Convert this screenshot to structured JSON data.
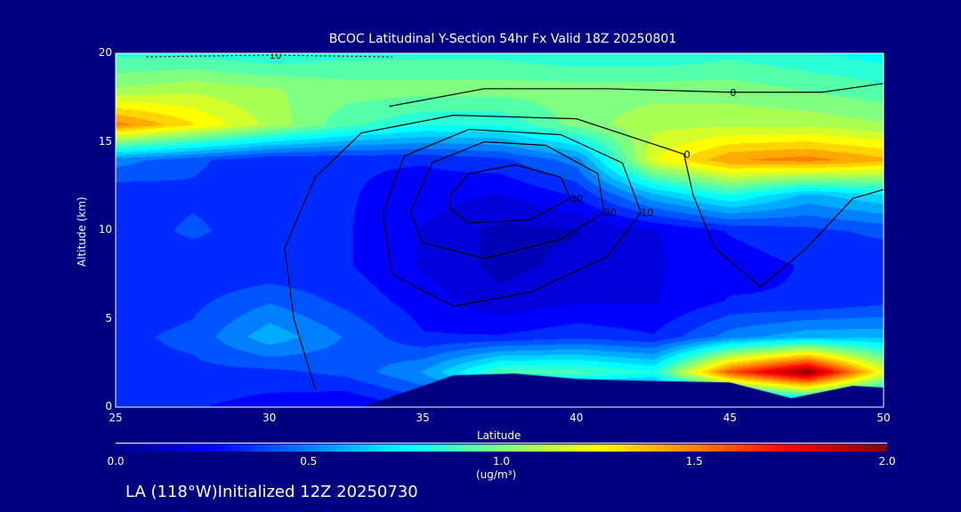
{
  "chart_data": {
    "type": "heatmap",
    "title": "BCOC Latitudinal Y-Section 54hr  Fx Valid 18Z 20250801",
    "xlabel": "Latitude",
    "ylabel": "Altitude (km)",
    "xlim": [
      25,
      50
    ],
    "ylim": [
      0,
      20
    ],
    "xticks": [
      "25",
      "30",
      "35",
      "40",
      "45",
      "50"
    ],
    "yticks": [
      "0",
      "5",
      "10",
      "15",
      "20"
    ],
    "grid_lat": [
      25,
      27.5,
      30,
      32.5,
      35,
      37.5,
      40,
      42.5,
      45,
      47.5,
      50
    ],
    "grid_alt": [
      0,
      2,
      4,
      6,
      8,
      10,
      12,
      14,
      16,
      18,
      20
    ],
    "values": [
      [
        0.3,
        0.3,
        0.25,
        0.2,
        0.3,
        0.1,
        0.1,
        0.1,
        0.1,
        0.3,
        0.3
      ],
      [
        0.35,
        0.35,
        0.35,
        0.4,
        0.55,
        0.9,
        0.9,
        0.8,
        1.6,
        2.0,
        1.2
      ],
      [
        0.35,
        0.4,
        0.6,
        0.45,
        0.3,
        0.3,
        0.35,
        0.3,
        0.5,
        0.6,
        0.6
      ],
      [
        0.3,
        0.35,
        0.45,
        0.35,
        0.25,
        0.15,
        0.2,
        0.2,
        0.3,
        0.3,
        0.35
      ],
      [
        0.3,
        0.3,
        0.3,
        0.3,
        0.2,
        0.1,
        0.15,
        0.2,
        0.25,
        0.3,
        0.3
      ],
      [
        0.3,
        0.4,
        0.3,
        0.3,
        0.2,
        0.1,
        0.12,
        0.2,
        0.3,
        0.35,
        0.4
      ],
      [
        0.3,
        0.35,
        0.3,
        0.3,
        0.25,
        0.2,
        0.3,
        0.6,
        0.8,
        0.6,
        0.7
      ],
      [
        0.5,
        0.4,
        0.3,
        0.3,
        0.3,
        0.35,
        0.5,
        1.2,
        1.45,
        1.5,
        1.4
      ],
      [
        1.5,
        1.3,
        1.1,
        0.9,
        0.8,
        0.8,
        1.0,
        1.1,
        1.1,
        1.1,
        1.05
      ],
      [
        1.05,
        1.1,
        1.05,
        1.0,
        1.0,
        1.0,
        1.0,
        1.0,
        1.0,
        0.95,
        0.9
      ],
      [
        0.85,
        0.85,
        0.8,
        0.85,
        0.85,
        0.85,
        0.8,
        0.8,
        0.85,
        0.8,
        0.75
      ]
    ],
    "terrain": [
      [
        25,
        0
      ],
      [
        33,
        0
      ],
      [
        36,
        1.8
      ],
      [
        38,
        1.9
      ],
      [
        40,
        1.6
      ],
      [
        42,
        1.5
      ],
      [
        45,
        1.4
      ],
      [
        47,
        0.5
      ],
      [
        49,
        1.2
      ],
      [
        50,
        1.1
      ],
      [
        50,
        0
      ]
    ],
    "contours": [
      {
        "label": "30",
        "points": [
          [
            35.9,
            12
          ],
          [
            36.5,
            13.2
          ],
          [
            38,
            13.7
          ],
          [
            39.5,
            13
          ],
          [
            39.8,
            11.8
          ],
          [
            38.5,
            10.6
          ],
          [
            36.5,
            10.4
          ],
          [
            35.9,
            11.2
          ],
          [
            35.9,
            12
          ]
        ]
      },
      {
        "label": "20",
        "points": [
          [
            34.6,
            11
          ],
          [
            35.3,
            13.8
          ],
          [
            37,
            15
          ],
          [
            39,
            14.8
          ],
          [
            40.7,
            13.2
          ],
          [
            40.9,
            11
          ],
          [
            39.5,
            9.5
          ],
          [
            37,
            8.4
          ],
          [
            35,
            9.3
          ],
          [
            34.6,
            11
          ]
        ]
      },
      {
        "label": "10",
        "points": [
          [
            33.7,
            11
          ],
          [
            34.4,
            14.2
          ],
          [
            36.5,
            15.7
          ],
          [
            39.5,
            15.4
          ],
          [
            41.5,
            13.8
          ],
          [
            42.1,
            11
          ],
          [
            41,
            8.5
          ],
          [
            38.5,
            6.5
          ],
          [
            36,
            5.7
          ],
          [
            34,
            7.5
          ],
          [
            33.7,
            11
          ]
        ]
      },
      {
        "label": "0",
        "points": [
          [
            31.5,
            1
          ],
          [
            30.8,
            5
          ],
          [
            30.5,
            9
          ],
          [
            31.5,
            13
          ],
          [
            33,
            15.5
          ],
          [
            36,
            16.5
          ],
          [
            40,
            16.3
          ],
          [
            43.5,
            14.3
          ],
          [
            43.8,
            12
          ],
          [
            44.5,
            9
          ],
          [
            46,
            6.8
          ],
          [
            47.5,
            9
          ],
          [
            49,
            11.8
          ],
          [
            50,
            12.3
          ]
        ]
      },
      {
        "label": "0",
        "points": [
          [
            33.9,
            17
          ],
          [
            37,
            18
          ],
          [
            41,
            18
          ],
          [
            45,
            17.8
          ],
          [
            48,
            17.8
          ],
          [
            50,
            18.3
          ]
        ]
      },
      {
        "label": "10",
        "points": [
          [
            26,
            19.8
          ],
          [
            30,
            19.9
          ],
          [
            34,
            19.8
          ]
        ]
      }
    ],
    "colorbar": {
      "min": 0.0,
      "max": 2.0,
      "ticks": [
        "0.0",
        "0.5",
        "1.0",
        "1.5",
        "2.0"
      ],
      "units": "(ug/m³)",
      "colors": [
        "#00008f",
        "#0000ff",
        "#0080ff",
        "#00ffff",
        "#80ff80",
        "#ffff00",
        "#ff8000",
        "#ff0000",
        "#800000"
      ]
    }
  },
  "footer": "LA (118°W)Initialized 12Z 20250730"
}
